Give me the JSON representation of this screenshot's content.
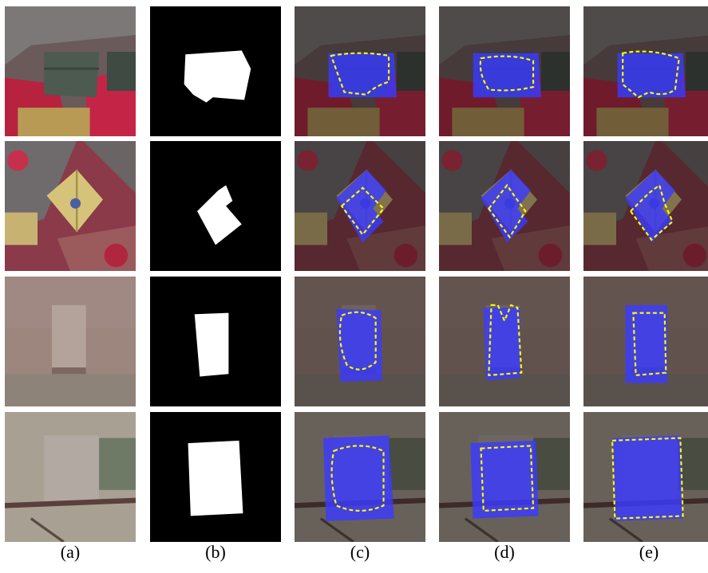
{
  "columns": [
    {
      "label": "(a)",
      "kind": "input-image"
    },
    {
      "label": "(b)",
      "kind": "ground-truth-mask"
    },
    {
      "label": "(c)",
      "kind": "prediction-overlay"
    },
    {
      "label": "(d)",
      "kind": "prediction-overlay"
    },
    {
      "label": "(e)",
      "kind": "prediction-overlay"
    }
  ],
  "rows": [
    {
      "scene": "false-color urban, flat-roof house"
    },
    {
      "scene": "false-color urban, pitched-roof house"
    },
    {
      "scene": "rgb rural, small rectangular building"
    },
    {
      "scene": "rgb rural, square building"
    }
  ],
  "colors": {
    "mask_fill": "#ffffff",
    "mask_bg": "#000000",
    "overlay_fill": "#3a3aff",
    "contour": "#ffff00"
  }
}
